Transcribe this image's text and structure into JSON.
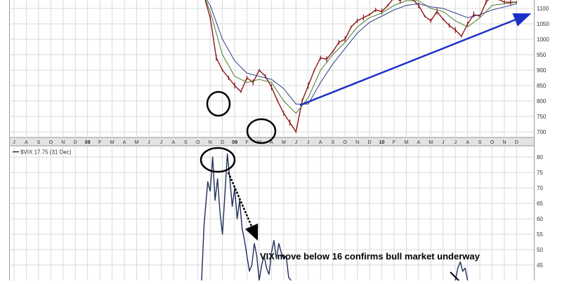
{
  "chart_data": [
    {
      "type": "line",
      "panel": "price",
      "title": "",
      "y_ticks": [
        700,
        750,
        800,
        850,
        900,
        950,
        1000,
        1050,
        1100
      ],
      "ylim": [
        660,
        1140
      ],
      "x_axis": {
        "months": [
          "J",
          "A",
          "S",
          "O",
          "N",
          "D",
          "08",
          "F",
          "M",
          "A",
          "M",
          "J",
          "J",
          "A",
          "S",
          "O",
          "N",
          "D",
          "09",
          "F",
          "M",
          "A",
          "M",
          "J",
          "J",
          "A",
          "S",
          "O",
          "N",
          "D",
          "10",
          "F",
          "M",
          "A",
          "M",
          "J",
          "J",
          "A",
          "S",
          "O",
          "N",
          "D"
        ],
        "year_labels": [
          "08",
          "09",
          "10"
        ]
      },
      "series": [
        {
          "role": "price",
          "x": [
            15.5,
            16,
            16.5,
            17,
            17.5,
            18,
            18.5,
            19,
            19.5,
            20,
            20.5,
            21,
            21.5,
            22,
            22.5,
            23,
            23.5,
            24,
            24.5,
            25,
            25.5,
            26,
            26.5,
            27,
            27.5,
            28,
            28.5,
            29,
            29.5,
            30,
            30.5,
            31,
            31.5,
            32,
            32.5,
            33,
            33.5,
            34,
            34.5,
            35,
            35.5,
            36,
            36.5,
            37,
            37.5,
            38,
            38.5,
            39,
            39.5,
            40,
            40.5,
            41
          ],
          "values": [
            1140,
            1070,
            940,
            900,
            875,
            850,
            830,
            875,
            860,
            900,
            880,
            845,
            800,
            760,
            730,
            700,
            800,
            850,
            900,
            940,
            935,
            960,
            990,
            1000,
            1040,
            1060,
            1070,
            1080,
            1095,
            1090,
            1110,
            1135,
            1125,
            1140,
            1130,
            1110,
            1075,
            1060,
            1090,
            1065,
            1045,
            1030,
            1010,
            1050,
            1080,
            1075,
            1120,
            1140,
            1130,
            1120,
            1120,
            1120
          ]
        },
        {
          "role": "moving-average-short",
          "x": [
            15.5,
            16,
            17,
            18,
            19,
            20,
            21,
            22,
            23,
            24,
            25,
            26,
            27,
            28,
            29,
            30,
            31,
            32,
            33,
            34,
            35,
            36,
            37,
            38,
            39,
            40,
            41
          ],
          "values": [
            1140,
            1090,
            950,
            880,
            860,
            870,
            860,
            800,
            760,
            810,
            900,
            950,
            990,
            1040,
            1070,
            1085,
            1110,
            1125,
            1125,
            1100,
            1090,
            1060,
            1040,
            1070,
            1110,
            1115,
            1120
          ]
        },
        {
          "role": "moving-average-long",
          "x": [
            15.5,
            16,
            17,
            18,
            19,
            20,
            21,
            22,
            23,
            24,
            25,
            26,
            27,
            28,
            29,
            30,
            31,
            32,
            33,
            34,
            35,
            36,
            37,
            38,
            39,
            40,
            41
          ],
          "values": [
            1140,
            1110,
            1000,
            930,
            890,
            880,
            870,
            840,
            790,
            790,
            860,
            920,
            970,
            1020,
            1055,
            1075,
            1095,
            1110,
            1115,
            1105,
            1100,
            1085,
            1070,
            1080,
            1095,
            1105,
            1115
          ]
        }
      ]
    },
    {
      "type": "line",
      "panel": "vix",
      "legend": "$VIX 17.75 (31 Dec)",
      "y_ticks": [
        45,
        50,
        55,
        60,
        65,
        70,
        75,
        80
      ],
      "ylim": [
        41,
        82
      ],
      "series": [
        {
          "name": "$VIX",
          "x": [
            15.3,
            15.5,
            15.8,
            16,
            16.2,
            16.4,
            16.6,
            16.8,
            17,
            17.2,
            17.4,
            17.6,
            17.8,
            18,
            18.2,
            18.4,
            18.6,
            18.8,
            19,
            19.2,
            19.4,
            19.6,
            19.8,
            20,
            20.2,
            20.4,
            20.6,
            20.8,
            21,
            21.2,
            21.4,
            21.6,
            21.8,
            22,
            22.2,
            22.4,
            22.6
          ],
          "values": [
            40,
            58,
            72,
            69,
            80,
            66,
            73,
            62,
            55,
            68,
            81,
            73,
            64,
            70,
            60,
            66,
            57,
            53,
            48,
            43,
            45,
            52,
            48,
            40,
            45,
            48,
            44,
            42,
            49,
            53,
            47,
            52,
            49,
            47,
            48,
            41,
            40
          ]
        },
        {
          "name": "$VIX",
          "x": [
            36,
            36.2,
            36.4,
            36.6,
            36.8,
            37
          ],
          "values": [
            40,
            44,
            46,
            43,
            44,
            40
          ]
        }
      ]
    }
  ],
  "annotations": {
    "vix_note": "VIX move below 16 confirms bull market underway"
  },
  "colors": {
    "background": "#ffffff",
    "panel_border": "#999999",
    "grid": "#d9d9d9",
    "axis_strip": "#e3e3e3",
    "price_bars": "#8b1515",
    "moving_average_short": "#4a7a2a",
    "moving_average_long": "#2a3a8a",
    "vix_line": "#1e2d5a",
    "trend_arrow": "#1a2fc8",
    "circle": "#000000"
  }
}
